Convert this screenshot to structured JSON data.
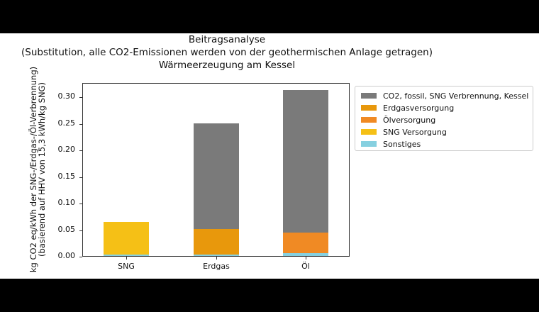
{
  "chart_data": {
    "type": "bar",
    "stacked": true,
    "title": "Beitragsanalyse\n(Substitution, alle CO2-Emissionen werden von der geothermischen Anlage getragen)\nWärmeerzeugung am Kessel",
    "title_lines": [
      "Beitragsanalyse",
      "(Substitution, alle CO2-Emissionen werden von der geothermischen Anlage getragen)",
      "Wärmeerzeugung am Kessel"
    ],
    "xlabel": "",
    "ylabel": "kg CO2 eq/kWh der SNG-/Erdgas-/Öl-Verbrennung)\n(basierend auf HHV von 15,3 kWh/kg SNG)",
    "ylabel_lines": [
      "kg CO2 eq/kWh der SNG-/Erdgas-/Öl-Verbrennung)",
      "(basierend auf HHV von 15,3 kWh/kg SNG)"
    ],
    "categories": [
      "SNG",
      "Erdgas",
      "Öl"
    ],
    "series": [
      {
        "name": "Sonstiges",
        "color": "#86d0e0",
        "values": [
          0.003,
          0.003,
          0.005
        ]
      },
      {
        "name": "SNG Versorgung",
        "color": "#f5c016",
        "values": [
          0.061,
          0.0,
          0.0
        ]
      },
      {
        "name": "Ölversorgung",
        "color": "#f08a24",
        "values": [
          0.0,
          0.0,
          0.039
        ]
      },
      {
        "name": "Erdgasversorgung",
        "color": "#e8980c",
        "values": [
          0.0,
          0.048,
          0.0
        ]
      },
      {
        "name": "CO2, fossil, SNG Verbrennung, Kessel",
        "color": "#7a7a7a",
        "values": [
          0.0,
          0.199,
          0.268
        ]
      }
    ],
    "totals": [
      0.064,
      0.25,
      0.312
    ],
    "ylim": [
      0.0,
      0.327
    ],
    "yticks": [
      0.0,
      0.05,
      0.1,
      0.15,
      0.2,
      0.25,
      0.3
    ],
    "ytick_labels": [
      "0.00",
      "0.05",
      "0.10",
      "0.15",
      "0.20",
      "0.25",
      "0.30"
    ],
    "grid": false,
    "legend_position": "outside right, upper",
    "legend_order": [
      "CO2, fossil, SNG Verbrennung, Kessel",
      "Erdgasversorgung",
      "Ölversorgung",
      "SNG Versorgung",
      "Sonstiges"
    ]
  },
  "legend": [
    {
      "label": "CO2, fossil, SNG Verbrennung, Kessel",
      "color": "#7a7a7a"
    },
    {
      "label": "Erdgasversorgung",
      "color": "#e8980c"
    },
    {
      "label": "Ölversorgung",
      "color": "#f08a24"
    },
    {
      "label": "SNG Versorgung",
      "color": "#f5c016"
    },
    {
      "label": "Sonstiges",
      "color": "#86d0e0"
    }
  ]
}
